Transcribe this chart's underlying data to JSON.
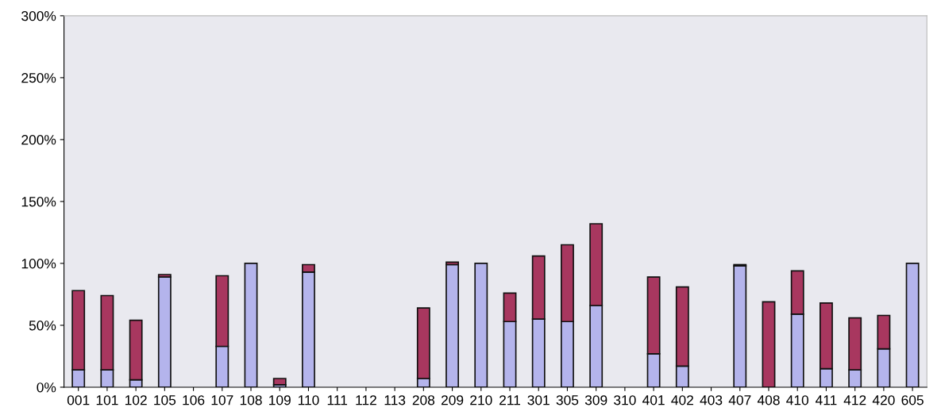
{
  "chart_data": {
    "type": "bar",
    "stacked": true,
    "categories": [
      "001",
      "101",
      "102",
      "105",
      "106",
      "107",
      "108",
      "109",
      "110",
      "111",
      "112",
      "113",
      "208",
      "209",
      "210",
      "211",
      "301",
      "305",
      "309",
      "310",
      "401",
      "402",
      "403",
      "407",
      "408",
      "410",
      "411",
      "412",
      "420",
      "605"
    ],
    "series": [
      {
        "color": "#b4b4ec",
        "values": [
          14,
          14,
          6,
          89,
          null,
          33,
          100,
          2,
          93,
          null,
          null,
          null,
          7,
          99,
          100,
          53,
          55,
          53,
          66,
          null,
          27,
          17,
          null,
          98,
          null,
          59,
          15,
          14,
          31,
          100
        ]
      },
      {
        "color": "#a8375f",
        "values": [
          64,
          60,
          48,
          2,
          null,
          57,
          null,
          5,
          6,
          null,
          null,
          null,
          57,
          2,
          null,
          23,
          51,
          62,
          66,
          null,
          62,
          64,
          null,
          1,
          69,
          35,
          53,
          42,
          27,
          null
        ]
      }
    ],
    "ylim": [
      0,
      300
    ],
    "yticks": [
      {
        "value": 0,
        "label": "0%"
      },
      {
        "value": 50,
        "label": "50%"
      },
      {
        "value": 100,
        "label": "100%"
      },
      {
        "value": 150,
        "label": "150%"
      },
      {
        "value": 200,
        "label": "200%"
      },
      {
        "value": 250,
        "label": "250%"
      },
      {
        "value": 300,
        "label": "300%"
      }
    ],
    "grid": false
  }
}
